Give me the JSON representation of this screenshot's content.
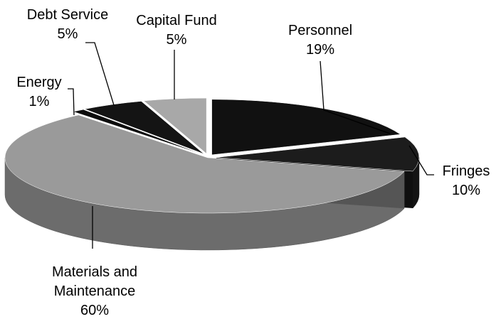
{
  "chart_data": {
    "type": "pie",
    "categories": [
      "Personnel",
      "Fringes",
      "Materials and Maintenance",
      "Energy",
      "Debt Service",
      "Capital Fund"
    ],
    "values": [
      19,
      10,
      60,
      1,
      5,
      5
    ],
    "value_labels": [
      "19%",
      "10%",
      "60%",
      "1%",
      "5%",
      "5%"
    ],
    "colors": [
      "#111111",
      "#1c1c1c",
      "#9a9a9a",
      "#0c0c0c",
      "#141414",
      "#a8a8a8"
    ]
  }
}
